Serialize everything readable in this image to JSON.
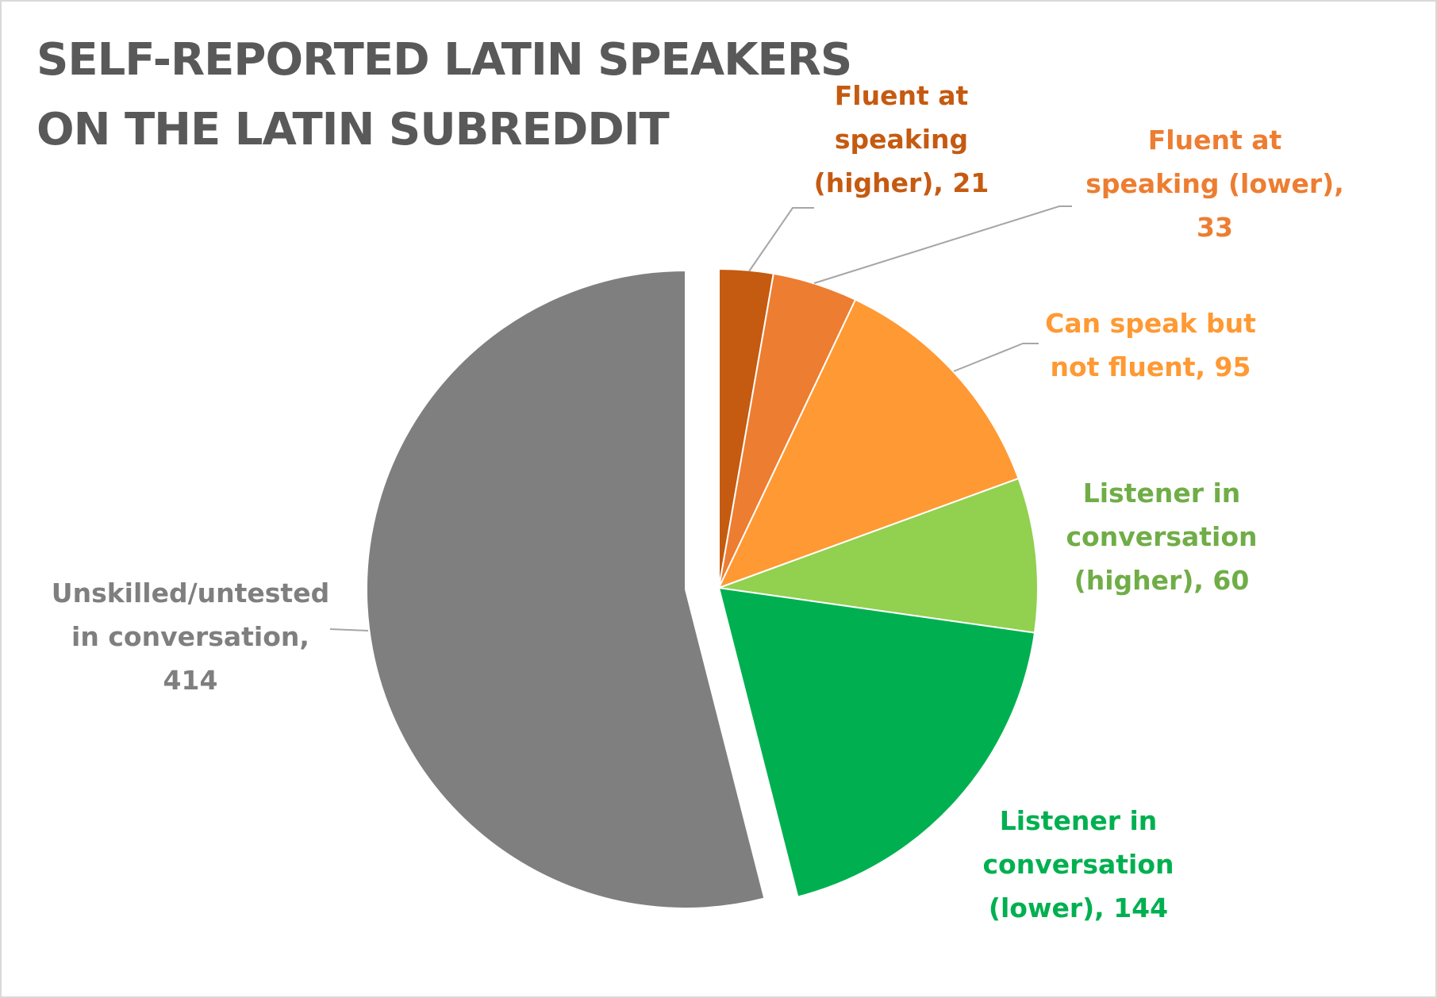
{
  "chart_data": {
    "type": "pie",
    "title_lines": [
      "SELF-REPORTED LATIN SPEAKERS",
      "ON THE LATIN SUBREDDIT"
    ],
    "slices": [
      {
        "label": "Fluent at speaking (higher)",
        "value": 21,
        "color": "#C55A11",
        "label_lines": [
          "Fluent at",
          "speaking",
          "(higher), 21"
        ]
      },
      {
        "label": "Fluent at speaking (lower)",
        "value": 33,
        "color": "#ED7D31",
        "label_lines": [
          "Fluent at",
          "speaking (lower),",
          "33"
        ]
      },
      {
        "label": "Can speak but not fluent",
        "value": 95,
        "color": "#FF9933",
        "label_lines": [
          "Can speak but",
          "not fluent, 95"
        ]
      },
      {
        "label": "Listener in conversation (higher)",
        "value": 60,
        "color": "#92D050",
        "label_color": "#70AD47",
        "label_lines": [
          "Listener in",
          "conversation",
          "(higher), 60"
        ]
      },
      {
        "label": "Listener in conversation (lower)",
        "value": 144,
        "color": "#00B050",
        "label_lines": [
          "Listener in",
          "conversation",
          "(lower), 144"
        ]
      },
      {
        "label": "Unskilled/untested in conversation",
        "value": 414,
        "color": "#7F7F7F",
        "label_lines": [
          "Unskilled/untested",
          "in conversation,",
          "414"
        ]
      }
    ],
    "legend": "none",
    "data_labels": "outside with leader lines"
  }
}
